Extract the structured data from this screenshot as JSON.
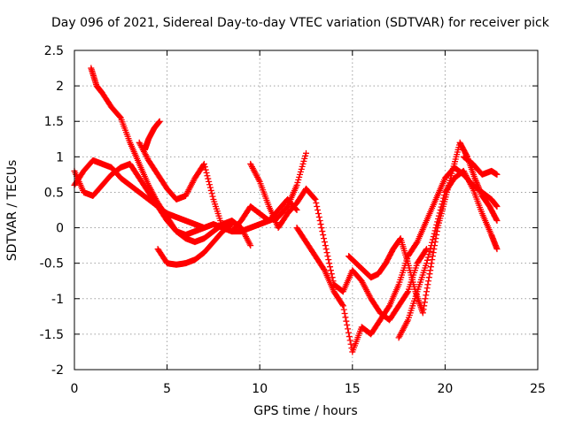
{
  "chart_data": {
    "type": "scatter",
    "title": "Day 096 of 2021, Sidereal Day-to-day VTEC variation (SDTVAR) for receiver pick",
    "xlabel": "GPS time / hours",
    "ylabel": "SDTVAR / TECUs",
    "xlim": [
      0,
      25
    ],
    "ylim": [
      -2,
      2.5
    ],
    "xticks": [
      0,
      5,
      10,
      15,
      20,
      25
    ],
    "yticks": [
      -2,
      -1.5,
      -1,
      -0.5,
      0,
      0.5,
      1,
      1.5,
      2,
      2.5
    ],
    "xtick_labels": [
      "0",
      "5",
      "10",
      "15",
      "20",
      "25"
    ],
    "ytick_labels": [
      "-2",
      "-1.5",
      "-1",
      "-0.5",
      "0",
      "0.5",
      "1",
      "1.5",
      "2",
      "2.5"
    ],
    "grid": true,
    "marker": "+",
    "color": "#ff0000",
    "series": [
      {
        "x": [
          0.0,
          0.5,
          1.0,
          1.5,
          2.0,
          2.5,
          3.0,
          3.5,
          4.0,
          4.5,
          5.0,
          5.5,
          6.0,
          6.5,
          7.0,
          7.5,
          8.0,
          8.5,
          9.0,
          9.5
        ],
        "y": [
          0.8,
          0.5,
          0.45,
          0.6,
          0.75,
          0.85,
          0.9,
          0.7,
          0.5,
          0.3,
          0.1,
          -0.05,
          -0.15,
          -0.2,
          -0.15,
          -0.05,
          0.05,
          0.1,
          0.0,
          -0.25
        ]
      },
      {
        "x": [
          0.0,
          0.5,
          1.0,
          1.5,
          2.0,
          2.5,
          3.0,
          3.5,
          4.0,
          4.5,
          5.0,
          5.5,
          6.0,
          6.5,
          7.0
        ],
        "y": [
          0.6,
          0.8,
          0.95,
          0.9,
          0.85,
          0.7,
          0.6,
          0.5,
          0.4,
          0.3,
          0.2,
          0.15,
          0.1,
          0.05,
          0.0
        ]
      },
      {
        "x": [
          0.9,
          1.2,
          1.5,
          2.0,
          2.5,
          3.0,
          3.5,
          4.0,
          4.5,
          5.0,
          5.5,
          6.0,
          6.5,
          7.0,
          7.5,
          8.0,
          8.5,
          9.0,
          9.5,
          10.0,
          10.5,
          11.0,
          11.5,
          12.0,
          12.5
        ],
        "y": [
          2.25,
          2.0,
          1.9,
          1.7,
          1.55,
          1.2,
          0.9,
          0.6,
          0.35,
          0.15,
          -0.05,
          -0.1,
          -0.05,
          0.0,
          0.05,
          0.0,
          -0.05,
          -0.05,
          0.0,
          0.05,
          0.1,
          0.15,
          0.3,
          0.6,
          1.05
        ]
      },
      {
        "x": [
          3.5,
          4.0,
          4.5,
          5.0,
          5.5,
          6.0,
          6.5,
          7.0,
          7.5,
          8.0,
          8.5,
          9.0,
          9.5,
          10.0,
          10.5,
          11.0,
          11.5,
          12.0
        ],
        "y": [
          1.2,
          0.95,
          0.75,
          0.55,
          0.4,
          0.45,
          0.7,
          0.9,
          0.4,
          0.0,
          -0.05,
          0.1,
          0.3,
          0.2,
          0.1,
          0.25,
          0.4,
          0.25
        ]
      },
      {
        "x": [
          3.8,
          4.0,
          4.3,
          4.6
        ],
        "y": [
          1.1,
          1.25,
          1.4,
          1.5
        ]
      },
      {
        "x": [
          4.5,
          5.0,
          5.5,
          6.0,
          6.5,
          7.0,
          7.5,
          8.0,
          8.5
        ],
        "y": [
          -0.3,
          -0.5,
          -0.52,
          -0.5,
          -0.45,
          -0.35,
          -0.2,
          -0.05,
          0.05
        ]
      },
      {
        "x": [
          9.5,
          10.0,
          10.5,
          11.0,
          11.5,
          12.0,
          12.5,
          13.0,
          13.5,
          14.0,
          14.5,
          15.0,
          15.5,
          16.0,
          16.5,
          17.0,
          17.5,
          18.0,
          18.5,
          19.0
        ],
        "y": [
          0.9,
          0.65,
          0.3,
          0.0,
          0.2,
          0.35,
          0.55,
          0.4,
          -0.2,
          -0.8,
          -0.9,
          -0.6,
          -0.75,
          -1.0,
          -1.2,
          -1.3,
          -1.1,
          -0.9,
          -0.5,
          -0.3
        ]
      },
      {
        "x": [
          12.0,
          12.5,
          13.0,
          13.5,
          14.0,
          14.5,
          15.0,
          15.5,
          16.0,
          16.5,
          17.0,
          17.5,
          18.0,
          18.5,
          19.0,
          19.5,
          20.0,
          20.5,
          21.0,
          21.5,
          22.0,
          22.5,
          22.8
        ],
        "y": [
          0.0,
          -0.2,
          -0.4,
          -0.6,
          -0.9,
          -1.1,
          -1.75,
          -1.4,
          -1.5,
          -1.3,
          -1.1,
          -0.8,
          -0.4,
          -0.2,
          0.1,
          0.4,
          0.7,
          0.85,
          0.75,
          0.6,
          0.5,
          0.4,
          0.3
        ]
      },
      {
        "x": [
          14.8,
          15.2,
          15.6,
          16.0,
          16.4,
          16.8,
          17.2,
          17.6,
          18.0,
          18.4,
          18.8,
          19.2,
          19.6,
          20.0,
          20.4,
          20.8,
          21.2,
          21.6,
          22.0,
          22.4,
          22.8
        ],
        "y": [
          -0.4,
          -0.5,
          -0.6,
          -0.7,
          -0.65,
          -0.5,
          -0.3,
          -0.15,
          -0.5,
          -0.9,
          -1.2,
          -0.6,
          0.0,
          0.4,
          0.8,
          1.2,
          1.0,
          0.7,
          0.45,
          0.3,
          0.1
        ]
      },
      {
        "x": [
          17.5,
          18.0,
          18.5,
          19.0,
          19.5,
          20.0,
          20.5,
          21.0,
          21.5,
          22.0,
          22.5,
          22.8
        ],
        "y": [
          -1.55,
          -1.3,
          -0.9,
          -0.5,
          0.0,
          0.5,
          0.7,
          0.8,
          0.55,
          0.2,
          -0.1,
          -0.3
        ]
      },
      {
        "x": [
          21.0,
          21.5,
          22.0,
          22.5,
          22.8
        ],
        "y": [
          1.0,
          0.9,
          0.75,
          0.8,
          0.75
        ]
      }
    ]
  }
}
